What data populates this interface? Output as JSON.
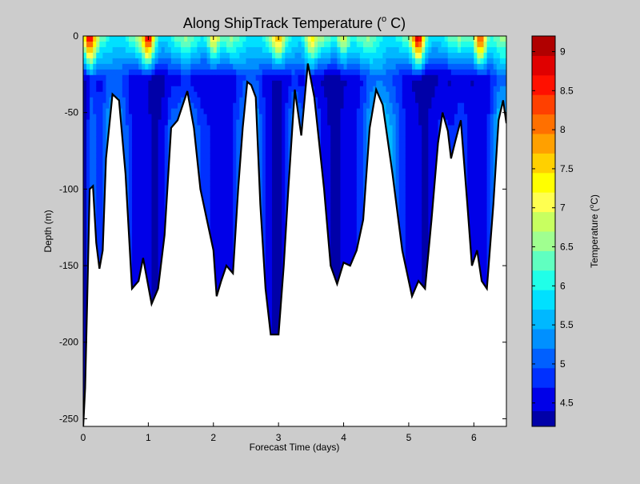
{
  "chart_data": {
    "type": "heatmap",
    "title": "Along ShipTrack Temperature (",
    "title_super": "o",
    "title_end": " C)",
    "xlabel": "Forecast Time (days)",
    "ylabel": "Depth (m)",
    "xlim": [
      0,
      6.5
    ],
    "ylim": [
      -255,
      0
    ],
    "xticks": [
      0,
      1,
      2,
      3,
      4,
      5,
      6
    ],
    "yticks": [
      0,
      -50,
      -100,
      -150,
      -200,
      -250
    ],
    "grid": false,
    "colorbar": {
      "label": "Temperature (",
      "label_super": "o",
      "label_end": "C)",
      "range": [
        4.2,
        9.2
      ],
      "ticks": [
        "4.5",
        "5",
        "5.5",
        "6",
        "6.5",
        "7",
        "7.5",
        "8",
        "8.5",
        "9"
      ],
      "tick_values": [
        4.5,
        5,
        5.5,
        6,
        6.5,
        7,
        7.5,
        8,
        8.5,
        9
      ],
      "levels": [
        4.2,
        4.4,
        4.7,
        4.95,
        5.2,
        5.45,
        5.7,
        5.95,
        6.2,
        6.45,
        6.7,
        6.95,
        7.2,
        7.45,
        7.7,
        7.95,
        8.2,
        8.45,
        8.7,
        8.95,
        9.2
      ],
      "colors": [
        "#0000a8",
        "#0000e8",
        "#0030ff",
        "#0060ff",
        "#0090ff",
        "#00b8ff",
        "#00e0ff",
        "#20ffe8",
        "#60ffc0",
        "#a0ff90",
        "#c8ff60",
        "#ffff50",
        "#ffff00",
        "#ffd000",
        "#ffa000",
        "#ff7000",
        "#ff4000",
        "#ff1000",
        "#e00000",
        "#b00000"
      ]
    },
    "bottom_depth": [
      {
        "x": 0.0,
        "y": -255
      },
      {
        "x": 0.03,
        "y": -230
      },
      {
        "x": 0.06,
        "y": -175
      },
      {
        "x": 0.1,
        "y": -100
      },
      {
        "x": 0.15,
        "y": -98
      },
      {
        "x": 0.2,
        "y": -135
      },
      {
        "x": 0.25,
        "y": -152
      },
      {
        "x": 0.3,
        "y": -140
      },
      {
        "x": 0.35,
        "y": -80
      },
      {
        "x": 0.45,
        "y": -38
      },
      {
        "x": 0.55,
        "y": -42
      },
      {
        "x": 0.65,
        "y": -90
      },
      {
        "x": 0.75,
        "y": -165
      },
      {
        "x": 0.85,
        "y": -160
      },
      {
        "x": 0.92,
        "y": -145
      },
      {
        "x": 1.05,
        "y": -175
      },
      {
        "x": 1.15,
        "y": -165
      },
      {
        "x": 1.25,
        "y": -130
      },
      {
        "x": 1.35,
        "y": -60
      },
      {
        "x": 1.45,
        "y": -55
      },
      {
        "x": 1.6,
        "y": -36
      },
      {
        "x": 1.7,
        "y": -60
      },
      {
        "x": 1.8,
        "y": -100
      },
      {
        "x": 1.9,
        "y": -120
      },
      {
        "x": 2.0,
        "y": -140
      },
      {
        "x": 2.05,
        "y": -170
      },
      {
        "x": 2.12,
        "y": -160
      },
      {
        "x": 2.2,
        "y": -150
      },
      {
        "x": 2.3,
        "y": -155
      },
      {
        "x": 2.38,
        "y": -100
      },
      {
        "x": 2.45,
        "y": -60
      },
      {
        "x": 2.52,
        "y": -30
      },
      {
        "x": 2.58,
        "y": -32
      },
      {
        "x": 2.65,
        "y": -40
      },
      {
        "x": 2.72,
        "y": -110
      },
      {
        "x": 2.8,
        "y": -165
      },
      {
        "x": 2.88,
        "y": -195
      },
      {
        "x": 3.0,
        "y": -195
      },
      {
        "x": 3.08,
        "y": -150
      },
      {
        "x": 3.15,
        "y": -100
      },
      {
        "x": 3.25,
        "y": -35
      },
      {
        "x": 3.35,
        "y": -65
      },
      {
        "x": 3.45,
        "y": -18
      },
      {
        "x": 3.55,
        "y": -40
      },
      {
        "x": 3.7,
        "y": -100
      },
      {
        "x": 3.8,
        "y": -150
      },
      {
        "x": 3.9,
        "y": -162
      },
      {
        "x": 4.0,
        "y": -148
      },
      {
        "x": 4.1,
        "y": -150
      },
      {
        "x": 4.2,
        "y": -140
      },
      {
        "x": 4.3,
        "y": -120
      },
      {
        "x": 4.4,
        "y": -60
      },
      {
        "x": 4.5,
        "y": -35
      },
      {
        "x": 4.6,
        "y": -45
      },
      {
        "x": 4.75,
        "y": -90
      },
      {
        "x": 4.9,
        "y": -140
      },
      {
        "x": 5.05,
        "y": -170
      },
      {
        "x": 5.15,
        "y": -160
      },
      {
        "x": 5.25,
        "y": -165
      },
      {
        "x": 5.35,
        "y": -120
      },
      {
        "x": 5.45,
        "y": -70
      },
      {
        "x": 5.52,
        "y": -50
      },
      {
        "x": 5.6,
        "y": -62
      },
      {
        "x": 5.65,
        "y": -80
      },
      {
        "x": 5.72,
        "y": -68
      },
      {
        "x": 5.8,
        "y": -55
      },
      {
        "x": 5.9,
        "y": -110
      },
      {
        "x": 5.97,
        "y": -150
      },
      {
        "x": 6.05,
        "y": -140
      },
      {
        "x": 6.12,
        "y": -160
      },
      {
        "x": 6.2,
        "y": -165
      },
      {
        "x": 6.3,
        "y": -110
      },
      {
        "x": 6.38,
        "y": -55
      },
      {
        "x": 6.45,
        "y": -42
      },
      {
        "x": 6.5,
        "y": -57
      }
    ],
    "surface_warm_maxima": [
      {
        "x": 0.1,
        "value": 8.7
      },
      {
        "x": 1.0,
        "value": 8.8
      },
      {
        "x": 2.0,
        "value": 7.6
      },
      {
        "x": 3.0,
        "value": 7.5
      },
      {
        "x": 3.5,
        "value": 7.4
      },
      {
        "x": 4.0,
        "value": 7.5
      },
      {
        "x": 5.15,
        "value": 8.9
      },
      {
        "x": 6.1,
        "value": 8.9
      }
    ]
  }
}
